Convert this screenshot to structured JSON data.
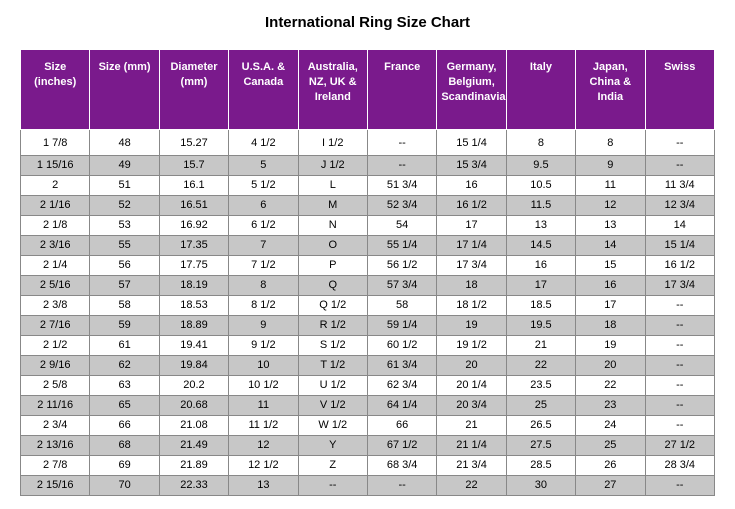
{
  "title": "International Ring Size Chart",
  "header_bg": "#7a1a8c",
  "header_fg": "#ffffff",
  "row_even_bg": "#c7c7c7",
  "row_odd_bg": "#ffffff",
  "columns": [
    "Size (inches)",
    "Size (mm)",
    "Diameter (mm)",
    "U.S.A. & Canada",
    "Australia, NZ, UK & Ireland",
    "France",
    "Germany, Belgium, Scandinavia",
    "Italy",
    "Japan, China & India",
    "Swiss"
  ],
  "rows": [
    [
      "1  7/8",
      "48",
      "15.27",
      "4  1/2",
      "I  1/2",
      "--",
      "15  1/4",
      "8",
      "8",
      "--"
    ],
    [
      "1 15/16",
      "49",
      "15.7",
      "5",
      "J  1/2",
      "--",
      "15  3/4",
      "9.5",
      "9",
      "--"
    ],
    [
      "2",
      "51",
      "16.1",
      "5  1/2",
      "L",
      "51  3/4",
      "16",
      "10.5",
      "11",
      "11  3/4"
    ],
    [
      "2  1/16",
      "52",
      "16.51",
      "6",
      "M",
      "52  3/4",
      "16  1/2",
      "11.5",
      "12",
      "12  3/4"
    ],
    [
      "2  1/8",
      "53",
      "16.92",
      "6  1/2",
      "N",
      "54",
      "17",
      "13",
      "13",
      "14"
    ],
    [
      "2  3/16",
      "55",
      "17.35",
      "7",
      "O",
      "55  1/4",
      "17  1/4",
      "14.5",
      "14",
      "15  1/4"
    ],
    [
      "2  1/4",
      "56",
      "17.75",
      "7  1/2",
      "P",
      "56  1/2",
      "17  3/4",
      "16",
      "15",
      "16  1/2"
    ],
    [
      "2  5/16",
      "57",
      "18.19",
      "8",
      "Q",
      "57  3/4",
      "18",
      "17",
      "16",
      "17  3/4"
    ],
    [
      "2  3/8",
      "58",
      "18.53",
      "8  1/2",
      "Q  1/2",
      "58",
      "18  1/2",
      "18.5",
      "17",
      "--"
    ],
    [
      "2  7/16",
      "59",
      "18.89",
      "9",
      "R  1/2",
      "59  1/4",
      "19",
      "19.5",
      "18",
      "--"
    ],
    [
      "2  1/2",
      "61",
      "19.41",
      "9  1/2",
      "S  1/2",
      "60  1/2",
      "19  1/2",
      "21",
      "19",
      "--"
    ],
    [
      "2  9/16",
      "62",
      "19.84",
      "10",
      "T  1/2",
      "61  3/4",
      "20",
      "22",
      "20",
      "--"
    ],
    [
      "2  5/8",
      "63",
      "20.2",
      "10  1/2",
      "U  1/2",
      "62  3/4",
      "20  1/4",
      "23.5",
      "22",
      "--"
    ],
    [
      "2 11/16",
      "65",
      "20.68",
      "11",
      "V  1/2",
      "64  1/4",
      "20  3/4",
      "25",
      "23",
      "--"
    ],
    [
      "2  3/4",
      "66",
      "21.08",
      "11  1/2",
      "W  1/2",
      "66",
      "21",
      "26.5",
      "24",
      "--"
    ],
    [
      "2 13/16",
      "68",
      "21.49",
      "12",
      "Y",
      "67  1/2",
      "21  1/4",
      "27.5",
      "25",
      "27  1/2"
    ],
    [
      "2  7/8",
      "69",
      "21.89",
      "12  1/2",
      "Z",
      "68  3/4",
      "21  3/4",
      "28.5",
      "26",
      "28  3/4"
    ],
    [
      "2 15/16",
      "70",
      "22.33",
      "13",
      "--",
      "--",
      "22",
      "30",
      "27",
      "--"
    ]
  ]
}
